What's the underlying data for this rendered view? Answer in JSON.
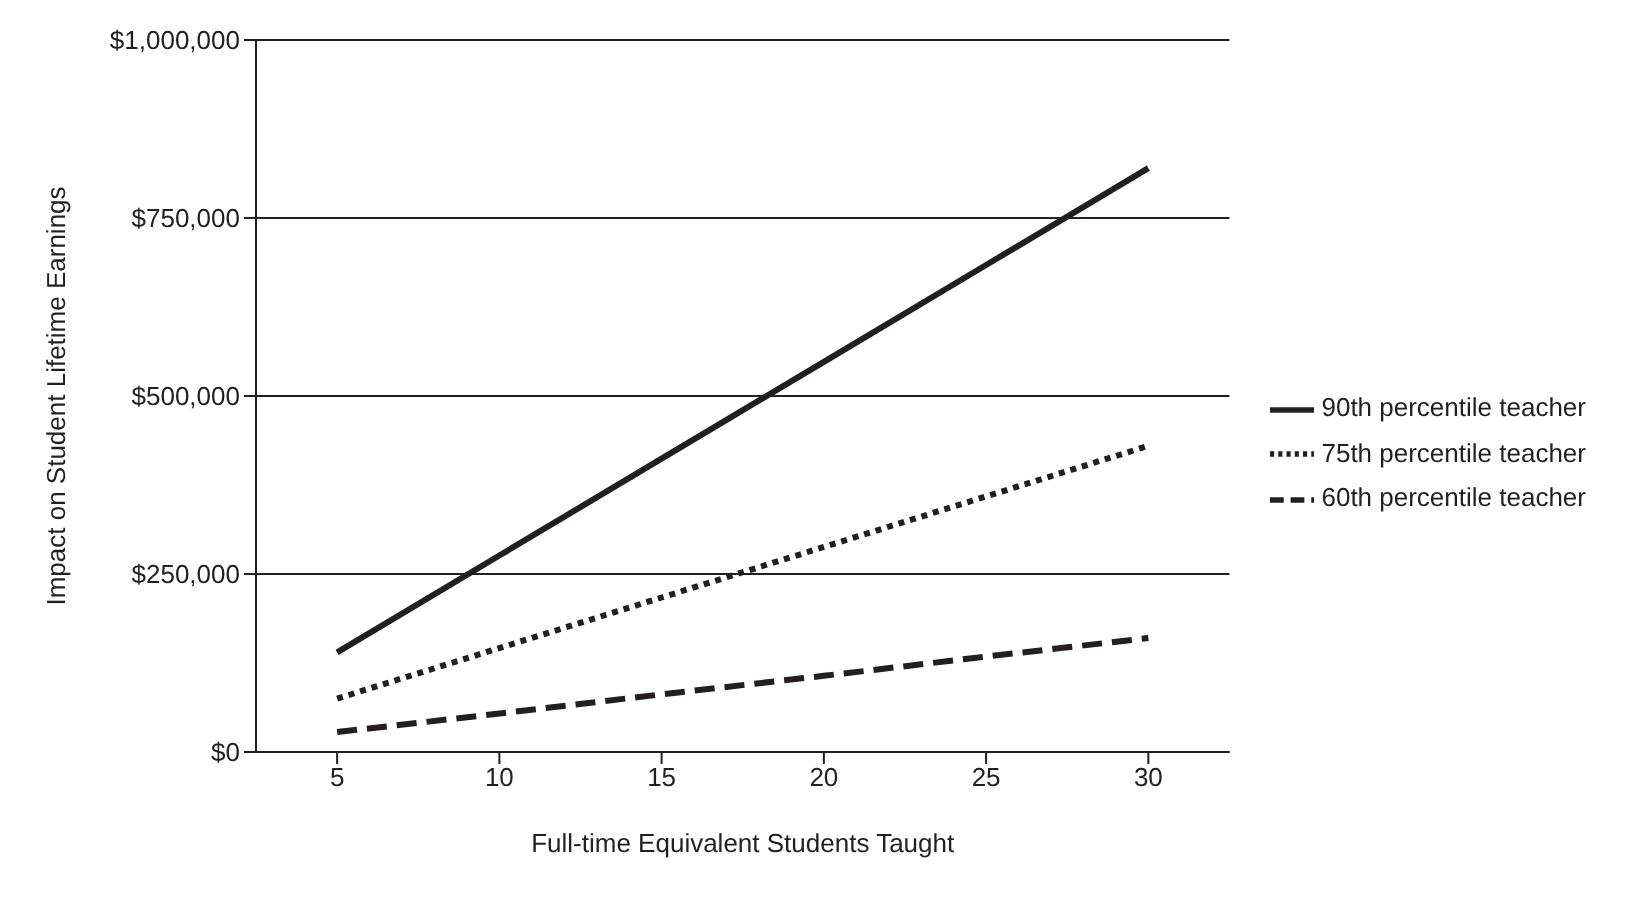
{
  "chart_data": {
    "type": "line",
    "xlabel": "Full-time Equivalent Students Taught",
    "ylabel": "Impact on Student Lifetime Earnings",
    "categories": [
      "5",
      "10",
      "15",
      "20",
      "25",
      "30"
    ],
    "series": [
      {
        "name": "90th percentile teacher",
        "color": "#231f20",
        "line_style": "solid",
        "values": [
          140000,
          276000,
          412000,
          548000,
          684000,
          820000
        ]
      },
      {
        "name": "75th percentile teacher",
        "color": "#231f20",
        "line_style": "dotted",
        "values": [
          75000,
          146000,
          217000,
          288000,
          359000,
          430000
        ]
      },
      {
        "name": "60th percentile teacher",
        "color": "#231f20",
        "line_style": "dashed",
        "values": [
          28000,
          54000,
          81000,
          107000,
          134000,
          160000
        ]
      }
    ],
    "ylim": [
      0,
      1000000
    ],
    "yticks": [
      {
        "value": 0,
        "label": "$0"
      },
      {
        "value": 250000,
        "label": "$250,000"
      },
      {
        "value": 500000,
        "label": "$500,000"
      },
      {
        "value": 750000,
        "label": "$750,000"
      },
      {
        "value": 1000000,
        "label": "$1,000,000"
      }
    ],
    "grid": "y",
    "legend": "right",
    "marker": "none"
  }
}
